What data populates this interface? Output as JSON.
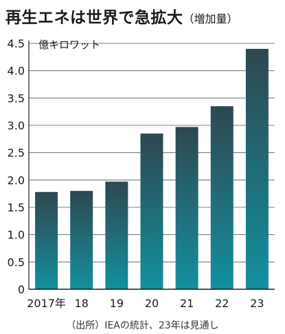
{
  "chart_data": {
    "type": "bar",
    "title": "再生エネは世界で急拡大",
    "subtitle": "（増加量）",
    "unit_label": "億キロワット",
    "categories": [
      "2017年",
      "18",
      "19",
      "20",
      "21",
      "22",
      "23"
    ],
    "values": [
      1.78,
      1.8,
      1.97,
      2.85,
      2.97,
      3.35,
      4.4
    ],
    "ylim": [
      0,
      4.5
    ],
    "yticks": [
      "0",
      "0.5",
      "1.0",
      "1.5",
      "2.0",
      "2.5",
      "3.0",
      "3.5",
      "4.0",
      "4.5"
    ],
    "grid": true,
    "colors": {
      "bar_top": "#2f4750",
      "bar_bottom": "#12909e",
      "grid": "#555555"
    },
    "source": "（出所）IEAの統計、23年は見通し"
  }
}
